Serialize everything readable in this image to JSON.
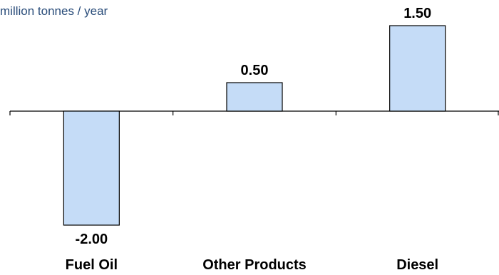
{
  "chart_data": {
    "type": "bar",
    "ylabel": "million tonnes / year",
    "categories": [
      "Fuel Oil",
      "Other Products",
      "Diesel"
    ],
    "values": [
      -2.0,
      0.5,
      1.5
    ],
    "value_labels": [
      "-2.00",
      "0.50",
      "1.50"
    ],
    "ylim": [
      -2.0,
      1.5
    ],
    "grid": false,
    "colors": {
      "bar_fill": "#c5dcf7",
      "bar_stroke": "#000000",
      "axis": "#000000",
      "unit_text": "#2a4d7a"
    }
  }
}
